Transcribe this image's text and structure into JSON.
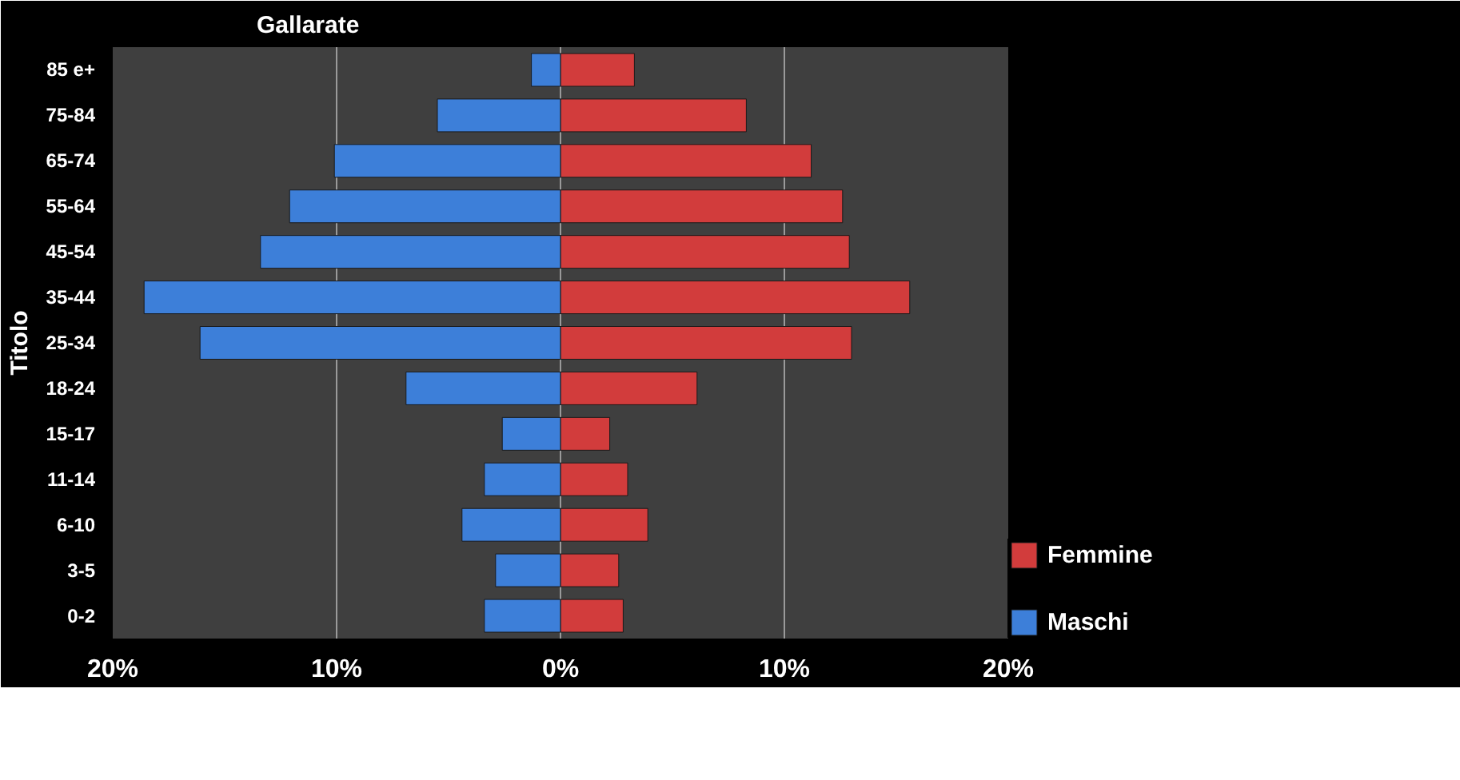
{
  "chart_data": {
    "type": "bar",
    "orientation": "horizontal",
    "title": "Gallarate",
    "ylabel": "Titolo",
    "categories": [
      "85 e+",
      "75-84",
      "65-74",
      "55-64",
      "45-54",
      "35-44",
      "25-34",
      "18-24",
      "15-17",
      "11-14",
      "6-10",
      "3-5",
      "0-2"
    ],
    "series": [
      {
        "name": "Femmine",
        "color": "#d23c3c",
        "values": [
          3.3,
          8.3,
          11.2,
          12.6,
          12.9,
          15.6,
          13.0,
          6.1,
          2.2,
          3.0,
          3.9,
          2.6,
          2.8
        ]
      },
      {
        "name": "Maschi",
        "color": "#3d7fd9",
        "values": [
          -1.3,
          -5.5,
          -10.1,
          -12.1,
          -13.4,
          -18.6,
          -16.1,
          -6.9,
          -2.6,
          -3.4,
          -4.4,
          -2.9,
          -3.4
        ]
      }
    ],
    "xlim": [
      -20,
      20
    ],
    "xticks": [
      {
        "value": -20,
        "label": "20%"
      },
      {
        "value": -10,
        "label": "10%"
      },
      {
        "value": 0,
        "label": "0%"
      },
      {
        "value": 10,
        "label": "10%"
      },
      {
        "value": 20,
        "label": "20%"
      }
    ],
    "grid": "x",
    "legend": "right",
    "stacked": true
  }
}
